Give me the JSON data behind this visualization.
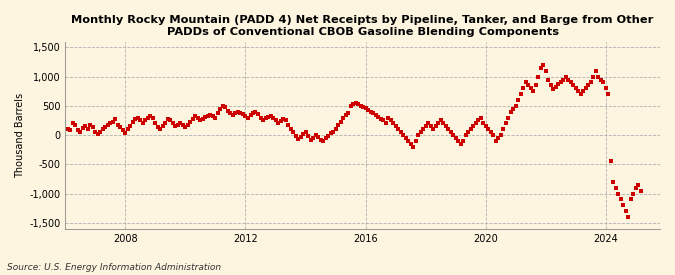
{
  "title": "Monthly Rocky Mountain (PADD 4) Net Receipts by Pipeline, Tanker, and Barge from Other\nPADDs of Conventional CBOB Gasoline Blending Components",
  "ylabel": "Thousand Barrels",
  "source": "Source: U.S. Energy Information Administration",
  "background_color": "#fdf5e0",
  "plot_bg_color": "#fdf5e0",
  "marker_color": "#cc0000",
  "marker_size": 6,
  "marker_style": "s",
  "ylim": [
    -1600,
    1600
  ],
  "yticks": [
    -1500,
    -1000,
    -500,
    0,
    500,
    1000,
    1500
  ],
  "xtick_years": [
    2008,
    2012,
    2016,
    2020,
    2024
  ],
  "xlim_start": 2006.0,
  "xlim_end": 2025.8,
  "data": [
    [
      2006.083,
      100
    ],
    [
      2006.167,
      80
    ],
    [
      2006.25,
      200
    ],
    [
      2006.333,
      170
    ],
    [
      2006.417,
      80
    ],
    [
      2006.5,
      60
    ],
    [
      2006.583,
      120
    ],
    [
      2006.667,
      150
    ],
    [
      2006.75,
      100
    ],
    [
      2006.833,
      170
    ],
    [
      2006.917,
      130
    ],
    [
      2007.0,
      60
    ],
    [
      2007.083,
      20
    ],
    [
      2007.167,
      50
    ],
    [
      2007.25,
      100
    ],
    [
      2007.333,
      140
    ],
    [
      2007.417,
      170
    ],
    [
      2007.5,
      200
    ],
    [
      2007.583,
      230
    ],
    [
      2007.667,
      280
    ],
    [
      2007.75,
      180
    ],
    [
      2007.833,
      130
    ],
    [
      2007.917,
      80
    ],
    [
      2008.0,
      30
    ],
    [
      2008.083,
      100
    ],
    [
      2008.167,
      150
    ],
    [
      2008.25,
      220
    ],
    [
      2008.333,
      280
    ],
    [
      2008.417,
      300
    ],
    [
      2008.5,
      250
    ],
    [
      2008.583,
      200
    ],
    [
      2008.667,
      260
    ],
    [
      2008.75,
      300
    ],
    [
      2008.833,
      330
    ],
    [
      2008.917,
      300
    ],
    [
      2009.0,
      200
    ],
    [
      2009.083,
      130
    ],
    [
      2009.167,
      100
    ],
    [
      2009.25,
      150
    ],
    [
      2009.333,
      200
    ],
    [
      2009.417,
      280
    ],
    [
      2009.5,
      250
    ],
    [
      2009.583,
      200
    ],
    [
      2009.667,
      150
    ],
    [
      2009.75,
      180
    ],
    [
      2009.833,
      200
    ],
    [
      2009.917,
      170
    ],
    [
      2010.0,
      130
    ],
    [
      2010.083,
      180
    ],
    [
      2010.167,
      230
    ],
    [
      2010.25,
      280
    ],
    [
      2010.333,
      320
    ],
    [
      2010.417,
      300
    ],
    [
      2010.5,
      260
    ],
    [
      2010.583,
      280
    ],
    [
      2010.667,
      310
    ],
    [
      2010.75,
      330
    ],
    [
      2010.833,
      350
    ],
    [
      2010.917,
      320
    ],
    [
      2011.0,
      300
    ],
    [
      2011.083,
      380
    ],
    [
      2011.167,
      450
    ],
    [
      2011.25,
      500
    ],
    [
      2011.333,
      480
    ],
    [
      2011.417,
      420
    ],
    [
      2011.5,
      370
    ],
    [
      2011.583,
      340
    ],
    [
      2011.667,
      380
    ],
    [
      2011.75,
      400
    ],
    [
      2011.833,
      380
    ],
    [
      2011.917,
      360
    ],
    [
      2012.0,
      330
    ],
    [
      2012.083,
      290
    ],
    [
      2012.167,
      340
    ],
    [
      2012.25,
      380
    ],
    [
      2012.333,
      400
    ],
    [
      2012.417,
      360
    ],
    [
      2012.5,
      300
    ],
    [
      2012.583,
      250
    ],
    [
      2012.667,
      290
    ],
    [
      2012.75,
      310
    ],
    [
      2012.833,
      330
    ],
    [
      2012.917,
      300
    ],
    [
      2013.0,
      250
    ],
    [
      2013.083,
      200
    ],
    [
      2013.167,
      240
    ],
    [
      2013.25,
      280
    ],
    [
      2013.333,
      250
    ],
    [
      2013.417,
      180
    ],
    [
      2013.5,
      100
    ],
    [
      2013.583,
      50
    ],
    [
      2013.667,
      -20
    ],
    [
      2013.75,
      -60
    ],
    [
      2013.833,
      -30
    ],
    [
      2013.917,
      20
    ],
    [
      2014.0,
      50
    ],
    [
      2014.083,
      -20
    ],
    [
      2014.167,
      -80
    ],
    [
      2014.25,
      -50
    ],
    [
      2014.333,
      0
    ],
    [
      2014.417,
      -40
    ],
    [
      2014.5,
      -80
    ],
    [
      2014.583,
      -100
    ],
    [
      2014.667,
      -50
    ],
    [
      2014.75,
      -20
    ],
    [
      2014.833,
      30
    ],
    [
      2014.917,
      50
    ],
    [
      2015.0,
      100
    ],
    [
      2015.083,
      180
    ],
    [
      2015.167,
      230
    ],
    [
      2015.25,
      290
    ],
    [
      2015.333,
      340
    ],
    [
      2015.417,
      380
    ],
    [
      2015.5,
      500
    ],
    [
      2015.583,
      530
    ],
    [
      2015.667,
      550
    ],
    [
      2015.75,
      530
    ],
    [
      2015.833,
      500
    ],
    [
      2015.917,
      480
    ],
    [
      2016.0,
      460
    ],
    [
      2016.083,
      430
    ],
    [
      2016.167,
      400
    ],
    [
      2016.25,
      370
    ],
    [
      2016.333,
      340
    ],
    [
      2016.417,
      310
    ],
    [
      2016.5,
      280
    ],
    [
      2016.583,
      250
    ],
    [
      2016.667,
      200
    ],
    [
      2016.75,
      300
    ],
    [
      2016.833,
      250
    ],
    [
      2016.917,
      200
    ],
    [
      2017.0,
      150
    ],
    [
      2017.083,
      100
    ],
    [
      2017.167,
      50
    ],
    [
      2017.25,
      0
    ],
    [
      2017.333,
      -50
    ],
    [
      2017.417,
      -100
    ],
    [
      2017.5,
      -150
    ],
    [
      2017.583,
      -200
    ],
    [
      2017.667,
      -100
    ],
    [
      2017.75,
      0
    ],
    [
      2017.833,
      50
    ],
    [
      2017.917,
      100
    ],
    [
      2018.0,
      150
    ],
    [
      2018.083,
      200
    ],
    [
      2018.167,
      150
    ],
    [
      2018.25,
      100
    ],
    [
      2018.333,
      150
    ],
    [
      2018.417,
      200
    ],
    [
      2018.5,
      250
    ],
    [
      2018.583,
      200
    ],
    [
      2018.667,
      150
    ],
    [
      2018.75,
      100
    ],
    [
      2018.833,
      50
    ],
    [
      2018.917,
      0
    ],
    [
      2019.0,
      -50
    ],
    [
      2019.083,
      -100
    ],
    [
      2019.167,
      -150
    ],
    [
      2019.25,
      -100
    ],
    [
      2019.333,
      0
    ],
    [
      2019.417,
      50
    ],
    [
      2019.5,
      100
    ],
    [
      2019.583,
      150
    ],
    [
      2019.667,
      200
    ],
    [
      2019.75,
      250
    ],
    [
      2019.833,
      300
    ],
    [
      2019.917,
      200
    ],
    [
      2020.0,
      150
    ],
    [
      2020.083,
      100
    ],
    [
      2020.167,
      50
    ],
    [
      2020.25,
      0
    ],
    [
      2020.333,
      -100
    ],
    [
      2020.417,
      -50
    ],
    [
      2020.5,
      0
    ],
    [
      2020.583,
      100
    ],
    [
      2020.667,
      200
    ],
    [
      2020.75,
      300
    ],
    [
      2020.833,
      400
    ],
    [
      2020.917,
      450
    ],
    [
      2021.0,
      500
    ],
    [
      2021.083,
      600
    ],
    [
      2021.167,
      700
    ],
    [
      2021.25,
      800
    ],
    [
      2021.333,
      900
    ],
    [
      2021.417,
      850
    ],
    [
      2021.5,
      800
    ],
    [
      2021.583,
      750
    ],
    [
      2021.667,
      850
    ],
    [
      2021.75,
      1000
    ],
    [
      2021.833,
      1150
    ],
    [
      2021.917,
      1200
    ],
    [
      2022.0,
      1100
    ],
    [
      2022.083,
      950
    ],
    [
      2022.167,
      850
    ],
    [
      2022.25,
      780
    ],
    [
      2022.333,
      820
    ],
    [
      2022.417,
      870
    ],
    [
      2022.5,
      900
    ],
    [
      2022.583,
      950
    ],
    [
      2022.667,
      1000
    ],
    [
      2022.75,
      950
    ],
    [
      2022.833,
      900
    ],
    [
      2022.917,
      850
    ],
    [
      2023.0,
      800
    ],
    [
      2023.083,
      750
    ],
    [
      2023.167,
      700
    ],
    [
      2023.25,
      750
    ],
    [
      2023.333,
      800
    ],
    [
      2023.417,
      850
    ],
    [
      2023.5,
      900
    ],
    [
      2023.583,
      1000
    ],
    [
      2023.667,
      1100
    ],
    [
      2023.75,
      1000
    ],
    [
      2023.833,
      950
    ],
    [
      2023.917,
      900
    ],
    [
      2024.0,
      800
    ],
    [
      2024.083,
      700
    ],
    [
      2024.167,
      -450
    ],
    [
      2024.25,
      -800
    ],
    [
      2024.333,
      -900
    ],
    [
      2024.417,
      -1000
    ],
    [
      2024.5,
      -1100
    ],
    [
      2024.583,
      -1200
    ],
    [
      2024.667,
      -1300
    ],
    [
      2024.75,
      -1400
    ],
    [
      2024.833,
      -1100
    ],
    [
      2024.917,
      -1000
    ],
    [
      2025.0,
      -900
    ],
    [
      2025.083,
      -850
    ],
    [
      2025.167,
      -950
    ]
  ]
}
